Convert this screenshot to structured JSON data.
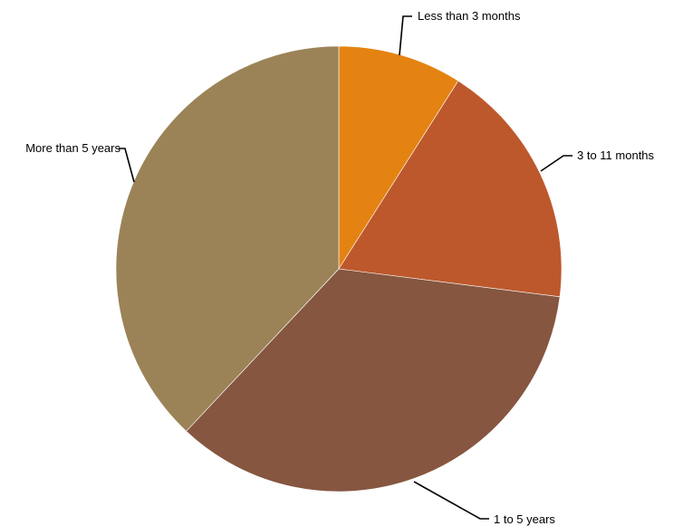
{
  "chart_data": {
    "type": "pie",
    "title": "",
    "slices": [
      {
        "label": "Less than 3 months",
        "value": 9,
        "color": "#E48312"
      },
      {
        "label": "3 to 11 months",
        "value": 18,
        "color": "#BD582C"
      },
      {
        "label": "1 to 5 years",
        "value": 35,
        "color": "#865640"
      },
      {
        "label": "More than 5 years",
        "value": 38,
        "color": "#9B8357"
      }
    ],
    "legend": "none",
    "start_angle": "12 o'clock",
    "direction": "clockwise"
  }
}
